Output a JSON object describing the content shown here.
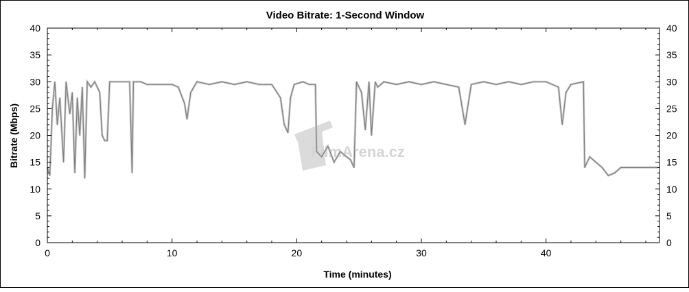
{
  "chart_data": {
    "type": "line",
    "title": "Video Bitrate: 1-Second Window",
    "xlabel": "Time (minutes)",
    "ylabel": "Bitrate (Mbps)",
    "xlim": [
      0,
      49.1
    ],
    "ylim": [
      0,
      40
    ],
    "x_ticks": [
      0,
      10,
      20,
      30,
      40
    ],
    "y_ticks": [
      0,
      5,
      10,
      15,
      20,
      25,
      30,
      35,
      40
    ],
    "grid": false,
    "line_color": "#7f7f7f",
    "series": [
      {
        "x": [
          0,
          0.2,
          0.4,
          0.6,
          0.8,
          1.0,
          1.3,
          1.5,
          1.8,
          2.0,
          2.2,
          2.4,
          2.6,
          2.8,
          3.0,
          3.2,
          3.5,
          3.8,
          4.0,
          4.2,
          4.4,
          4.6,
          4.8,
          5.0,
          5.5,
          6.0,
          6.6,
          6.8,
          6.9,
          7.5,
          8,
          9,
          10,
          10.5,
          11,
          11.2,
          11.5,
          12,
          13,
          14,
          15,
          16,
          17,
          18,
          18.7,
          19,
          19.3,
          19.5,
          19.8,
          20.5,
          21,
          21.5,
          21.6,
          22,
          22.5,
          23,
          23.5,
          24,
          24.3,
          24.6,
          24.8,
          25.2,
          25.5,
          25.8,
          26,
          26.3,
          26.5,
          27,
          28,
          29,
          30,
          31,
          32,
          33,
          33.5,
          34,
          35,
          36,
          37,
          38,
          39,
          40,
          41,
          41.3,
          41.6,
          42,
          43,
          43.1,
          43.5,
          44,
          44.5,
          45,
          45.5,
          46,
          47,
          48,
          49
        ],
        "y": [
          14,
          12.5,
          25,
          30,
          22,
          27,
          15,
          30,
          24,
          28,
          13,
          27,
          20,
          29,
          12,
          30,
          29,
          30,
          29,
          28,
          20,
          19,
          19,
          30,
          30,
          30,
          30,
          13,
          30,
          30,
          29.5,
          29.5,
          29.5,
          29,
          26,
          23,
          28,
          30,
          29.5,
          30,
          29.5,
          30,
          29.5,
          29.5,
          27,
          22,
          20.5,
          27,
          29.5,
          30,
          29.5,
          29.5,
          17,
          16,
          18,
          15,
          17,
          16,
          15.5,
          14,
          30,
          28,
          21,
          30,
          20,
          30,
          29,
          30,
          29.5,
          30,
          29.5,
          30,
          29.5,
          29,
          22,
          29.5,
          30,
          29.5,
          30,
          29.5,
          30,
          30,
          29,
          22,
          28,
          29.5,
          30,
          14,
          16,
          15,
          14,
          12.5,
          13,
          14,
          14,
          14,
          14
        ]
      }
    ],
    "watermark": "FilmArena.cz"
  }
}
